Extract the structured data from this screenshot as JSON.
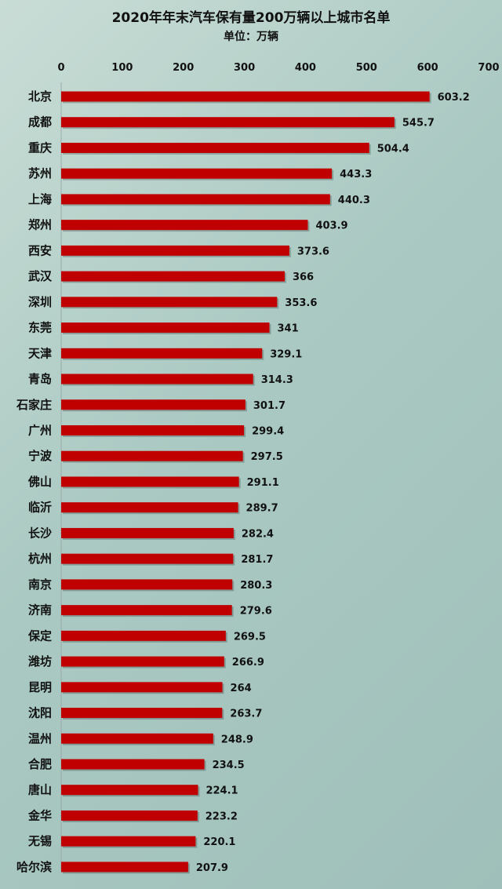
{
  "chart_data": {
    "type": "bar",
    "orientation": "horizontal",
    "title": "2020年年末汽车保有量200万辆以上城市名单",
    "subtitle": "单位：万辆",
    "xlim": [
      0,
      700
    ],
    "ticks": [
      0,
      100,
      200,
      300,
      400,
      500,
      600,
      700
    ],
    "grid": false,
    "bar_color": "#c00000",
    "categories": [
      "北京",
      "成都",
      "重庆",
      "苏州",
      "上海",
      "郑州",
      "西安",
      "武汉",
      "深圳",
      "东莞",
      "天津",
      "青岛",
      "石家庄",
      "广州",
      "宁波",
      "佛山",
      "临沂",
      "长沙",
      "杭州",
      "南京",
      "济南",
      "保定",
      "潍坊",
      "昆明",
      "沈阳",
      "温州",
      "合肥",
      "唐山",
      "金华",
      "无锡",
      "哈尔滨"
    ],
    "values": [
      603.2,
      545.7,
      504.4,
      443.3,
      440.3,
      403.9,
      373.6,
      366,
      353.6,
      341,
      329.1,
      314.3,
      301.7,
      299.4,
      297.5,
      291.1,
      289.7,
      282.4,
      281.7,
      280.3,
      279.6,
      269.5,
      266.9,
      264,
      263.7,
      248.9,
      234.5,
      224.1,
      223.2,
      220.1,
      207.9
    ],
    "labels": [
      "603.2",
      "545.7",
      "504.4",
      "443.3",
      "440.3",
      "403.9",
      "373.6",
      "366",
      "353.6",
      "341",
      "329.1",
      "314.3",
      "301.7",
      "299.4",
      "297.5",
      "291.1",
      "289.7",
      "282.4",
      "281.7",
      "280.3",
      "279.6",
      "269.5",
      "266.9",
      "264",
      "263.7",
      "248.9",
      "234.5",
      "224.1",
      "223.2",
      "220.1",
      "207.9"
    ]
  }
}
